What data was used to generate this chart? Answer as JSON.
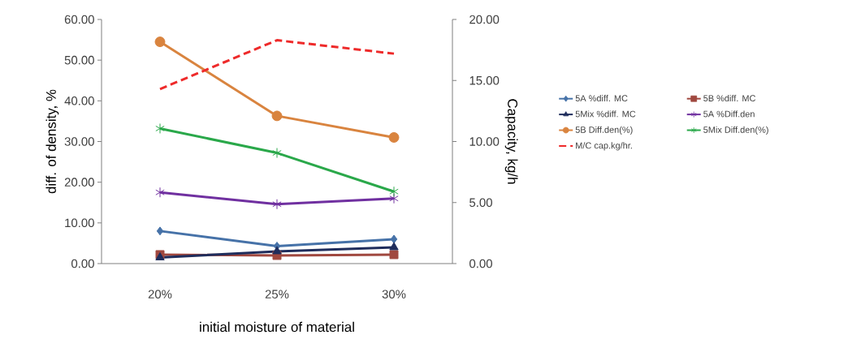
{
  "chart_data": {
    "type": "line",
    "xlabel": "initial moisture of material",
    "ylabel": "diff. of density, %",
    "y2label": "Capacity, kg/h",
    "categories": [
      "20%",
      "25%",
      "30%"
    ],
    "ylim": [
      0,
      60
    ],
    "yticks": [
      {
        "value": 0,
        "label": "0.00"
      },
      {
        "value": 10,
        "label": "10.00"
      },
      {
        "value": 20,
        "label": "20.00"
      },
      {
        "value": 30,
        "label": "30.00"
      },
      {
        "value": 40,
        "label": "40.00"
      },
      {
        "value": 50,
        "label": "50.00"
      },
      {
        "value": 60,
        "label": "60.00"
      }
    ],
    "y2lim": [
      0,
      20
    ],
    "y2ticks": [
      {
        "value": 0,
        "label": "0.00"
      },
      {
        "value": 5,
        "label": "5.00"
      },
      {
        "value": 10,
        "label": "10.00"
      },
      {
        "value": 15,
        "label": "15.00"
      },
      {
        "value": 20,
        "label": "20.00"
      }
    ],
    "legend": "right",
    "grid": false,
    "series": [
      {
        "name": "5A  %diff. MC",
        "color": "#4672a8",
        "marker": "diamond",
        "values": [
          8.0,
          4.3,
          6.0
        ]
      },
      {
        "name": "5B  %diff. MC",
        "color": "#a0483f",
        "marker": "square",
        "values": [
          2.2,
          2.0,
          2.2
        ]
      },
      {
        "name": "5Mix  %diff.  MC",
        "color": "#1f2d5c",
        "marker": "triangle",
        "values": [
          1.5,
          3.0,
          4.0
        ]
      },
      {
        "name": "5A  %Diff.den",
        "color": "#7030a0",
        "marker": "cross",
        "values": [
          17.5,
          14.6,
          16.0
        ]
      },
      {
        "name": "5B Diff.den(%)",
        "color": "#d9843f",
        "marker": "circle",
        "values": [
          54.5,
          36.3,
          31.0
        ]
      },
      {
        "name": "5Mix  Diff.den(%)",
        "color": "#2aa84a",
        "marker": "cross",
        "values": [
          33.2,
          27.2,
          17.7
        ]
      },
      {
        "name": "M/C cap.kg/hr.",
        "color": "#ee2a2a",
        "marker": "none",
        "line_style": "dashed",
        "axis": "y2",
        "values": [
          14.3,
          18.3,
          17.2
        ]
      }
    ]
  }
}
